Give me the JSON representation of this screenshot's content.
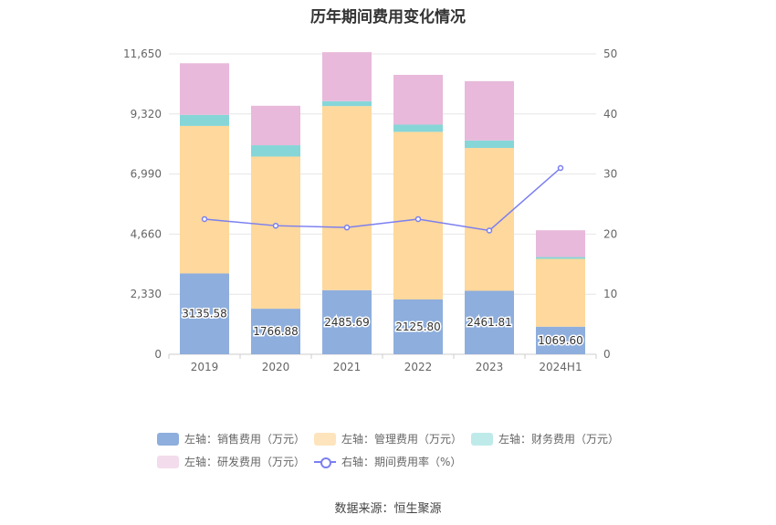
{
  "chart_data": {
    "type": "bar",
    "title": "历年期间费用变化情况",
    "categories": [
      "2019",
      "2020",
      "2021",
      "2022",
      "2023",
      "2024H1"
    ],
    "left_axis": {
      "ticks": [
        "0",
        "2,330",
        "4,660",
        "6,990",
        "9,320",
        "11,650"
      ],
      "ylim": [
        0,
        11650
      ]
    },
    "right_axis": {
      "ticks": [
        "0",
        "10",
        "20",
        "30",
        "40",
        "50"
      ],
      "ylim": [
        0,
        50
      ]
    },
    "series": [
      {
        "name": "左轴：销售费用（万元）",
        "axis": "left",
        "color": "#8eaedd",
        "values": [
          3135.58,
          1766.88,
          2485.69,
          2125.8,
          2461.81,
          1069.6
        ],
        "labels": [
          "3135.58",
          "1766.88",
          "2485.69",
          "2125.80",
          "2461.81",
          "1069.60"
        ]
      },
      {
        "name": "左轴：管理费用（万元）",
        "axis": "left",
        "color": "#fed89c",
        "values": [
          5720,
          5900,
          7140,
          6500,
          5540,
          2630
        ]
      },
      {
        "name": "左轴：财务费用（万元）",
        "axis": "left",
        "color": "#86d6d8",
        "values": [
          430,
          440,
          190,
          280,
          290,
          70
        ]
      },
      {
        "name": "左轴：研发费用（万元）",
        "axis": "left",
        "color": "#e8b9da",
        "values": [
          2000,
          1530,
          1900,
          1930,
          2300,
          1040
        ]
      },
      {
        "name": "右轴：期间费用率（%）",
        "axis": "right",
        "type": "line",
        "color": "#7b7ff0",
        "values": [
          22.5,
          21.4,
          21.1,
          22.5,
          20.6,
          31.0
        ]
      }
    ],
    "legend_position": "bottom",
    "grid": true
  },
  "source": "数据来源：恒生聚源"
}
